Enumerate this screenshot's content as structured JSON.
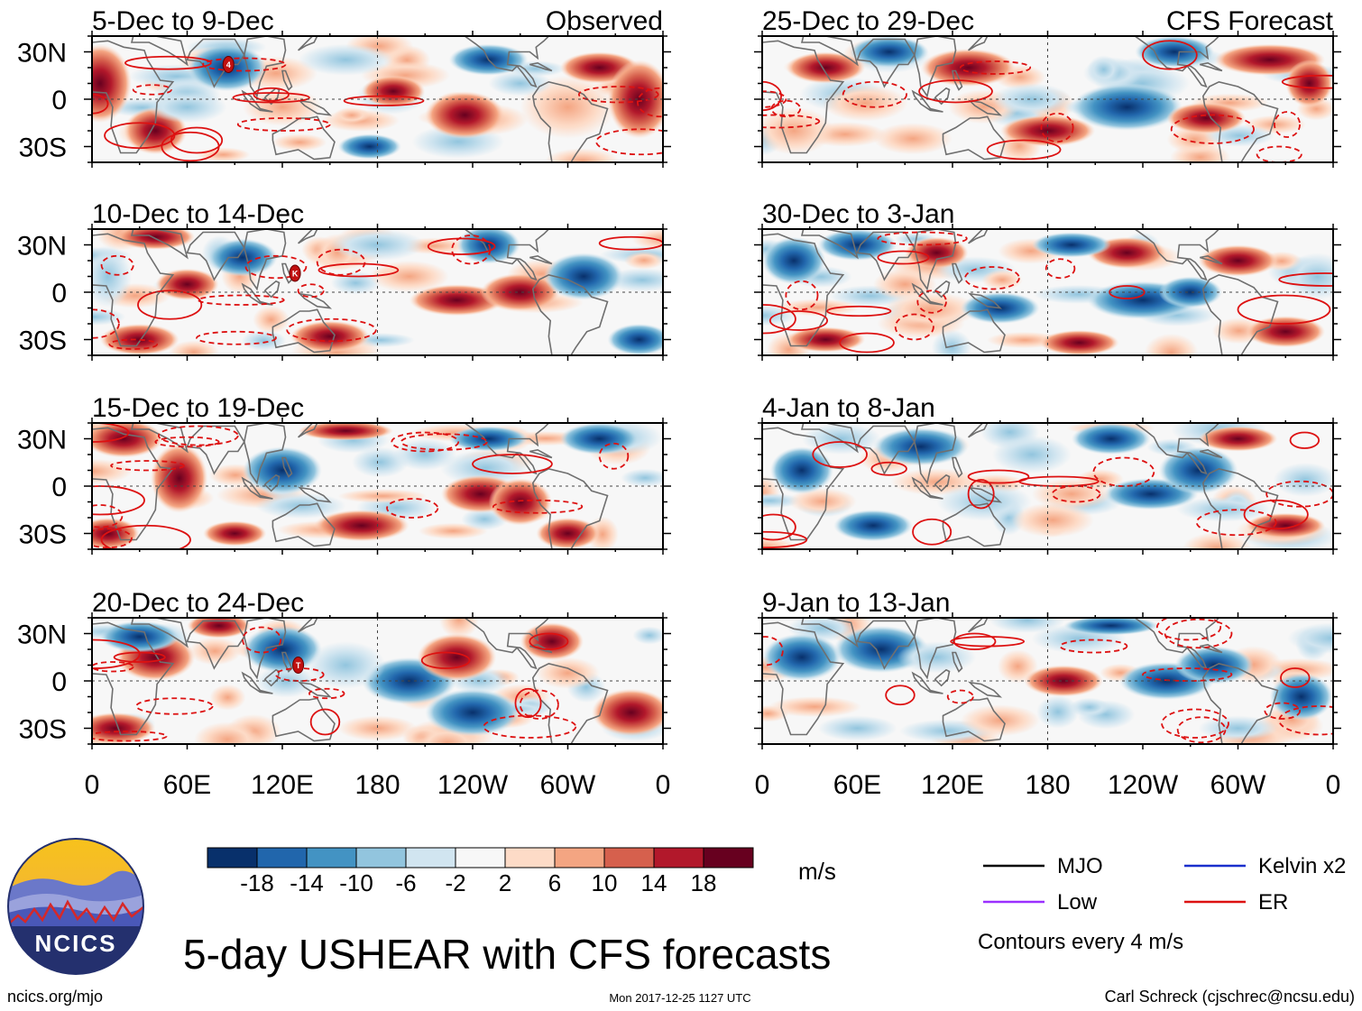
{
  "left_column": {
    "label": "Observed",
    "panels": [
      {
        "title": "5-Dec to 9-Dec",
        "storms": [
          {
            "lon": 86,
            "lat": 22,
            "label": "4"
          }
        ]
      },
      {
        "title": "10-Dec to 14-Dec",
        "storms": [
          {
            "lon": 128,
            "lat": 12,
            "label": "K"
          }
        ]
      },
      {
        "title": "15-Dec to 19-Dec",
        "storms": []
      },
      {
        "title": "20-Dec to 24-Dec",
        "storms": [
          {
            "lon": 130,
            "lat": 10,
            "label": "T"
          }
        ]
      }
    ]
  },
  "right_column": {
    "label": "CFS Forecast",
    "panels": [
      {
        "title": "25-Dec to 29-Dec",
        "storms": []
      },
      {
        "title": "30-Dec to 3-Jan",
        "storms": []
      },
      {
        "title": "4-Jan to 8-Jan",
        "storms": []
      },
      {
        "title": "9-Jan to 13-Jan",
        "storms": []
      }
    ]
  },
  "lat_labels": [
    "30N",
    "0",
    "30S"
  ],
  "lon_labels": [
    "0",
    "60E",
    "120E",
    "180",
    "120W",
    "60W",
    "0"
  ],
  "colorbar": {
    "colors": [
      "#08306b",
      "#2166ac",
      "#4393c3",
      "#92c5de",
      "#d1e5f0",
      "#f7f7f7",
      "#fddbc7",
      "#f4a582",
      "#d6604d",
      "#b2182b",
      "#67001f"
    ],
    "tick_labels": [
      "-18",
      "-14",
      "-10",
      "-6",
      "-2",
      "2",
      "6",
      "10",
      "14",
      "18"
    ],
    "units": "m/s"
  },
  "legend": {
    "items": [
      {
        "label": "MJO",
        "color": "#000000"
      },
      {
        "label": "Kelvin x2",
        "color": "#1a2fcc"
      },
      {
        "label": "Low",
        "color": "#9b30ff"
      },
      {
        "label": "ER",
        "color": "#dd1111"
      }
    ],
    "contour_note": "Contours every 4 m/s"
  },
  "logo_text": "NCICS",
  "main_title": "5-day USHEAR with CFS forecasts",
  "footer": {
    "left": "ncics.org/mjo",
    "center": "Mon 2017-12-25 1127 UTC",
    "right": "Carl Schreck (cjschrec@ncsu.edu)"
  }
}
